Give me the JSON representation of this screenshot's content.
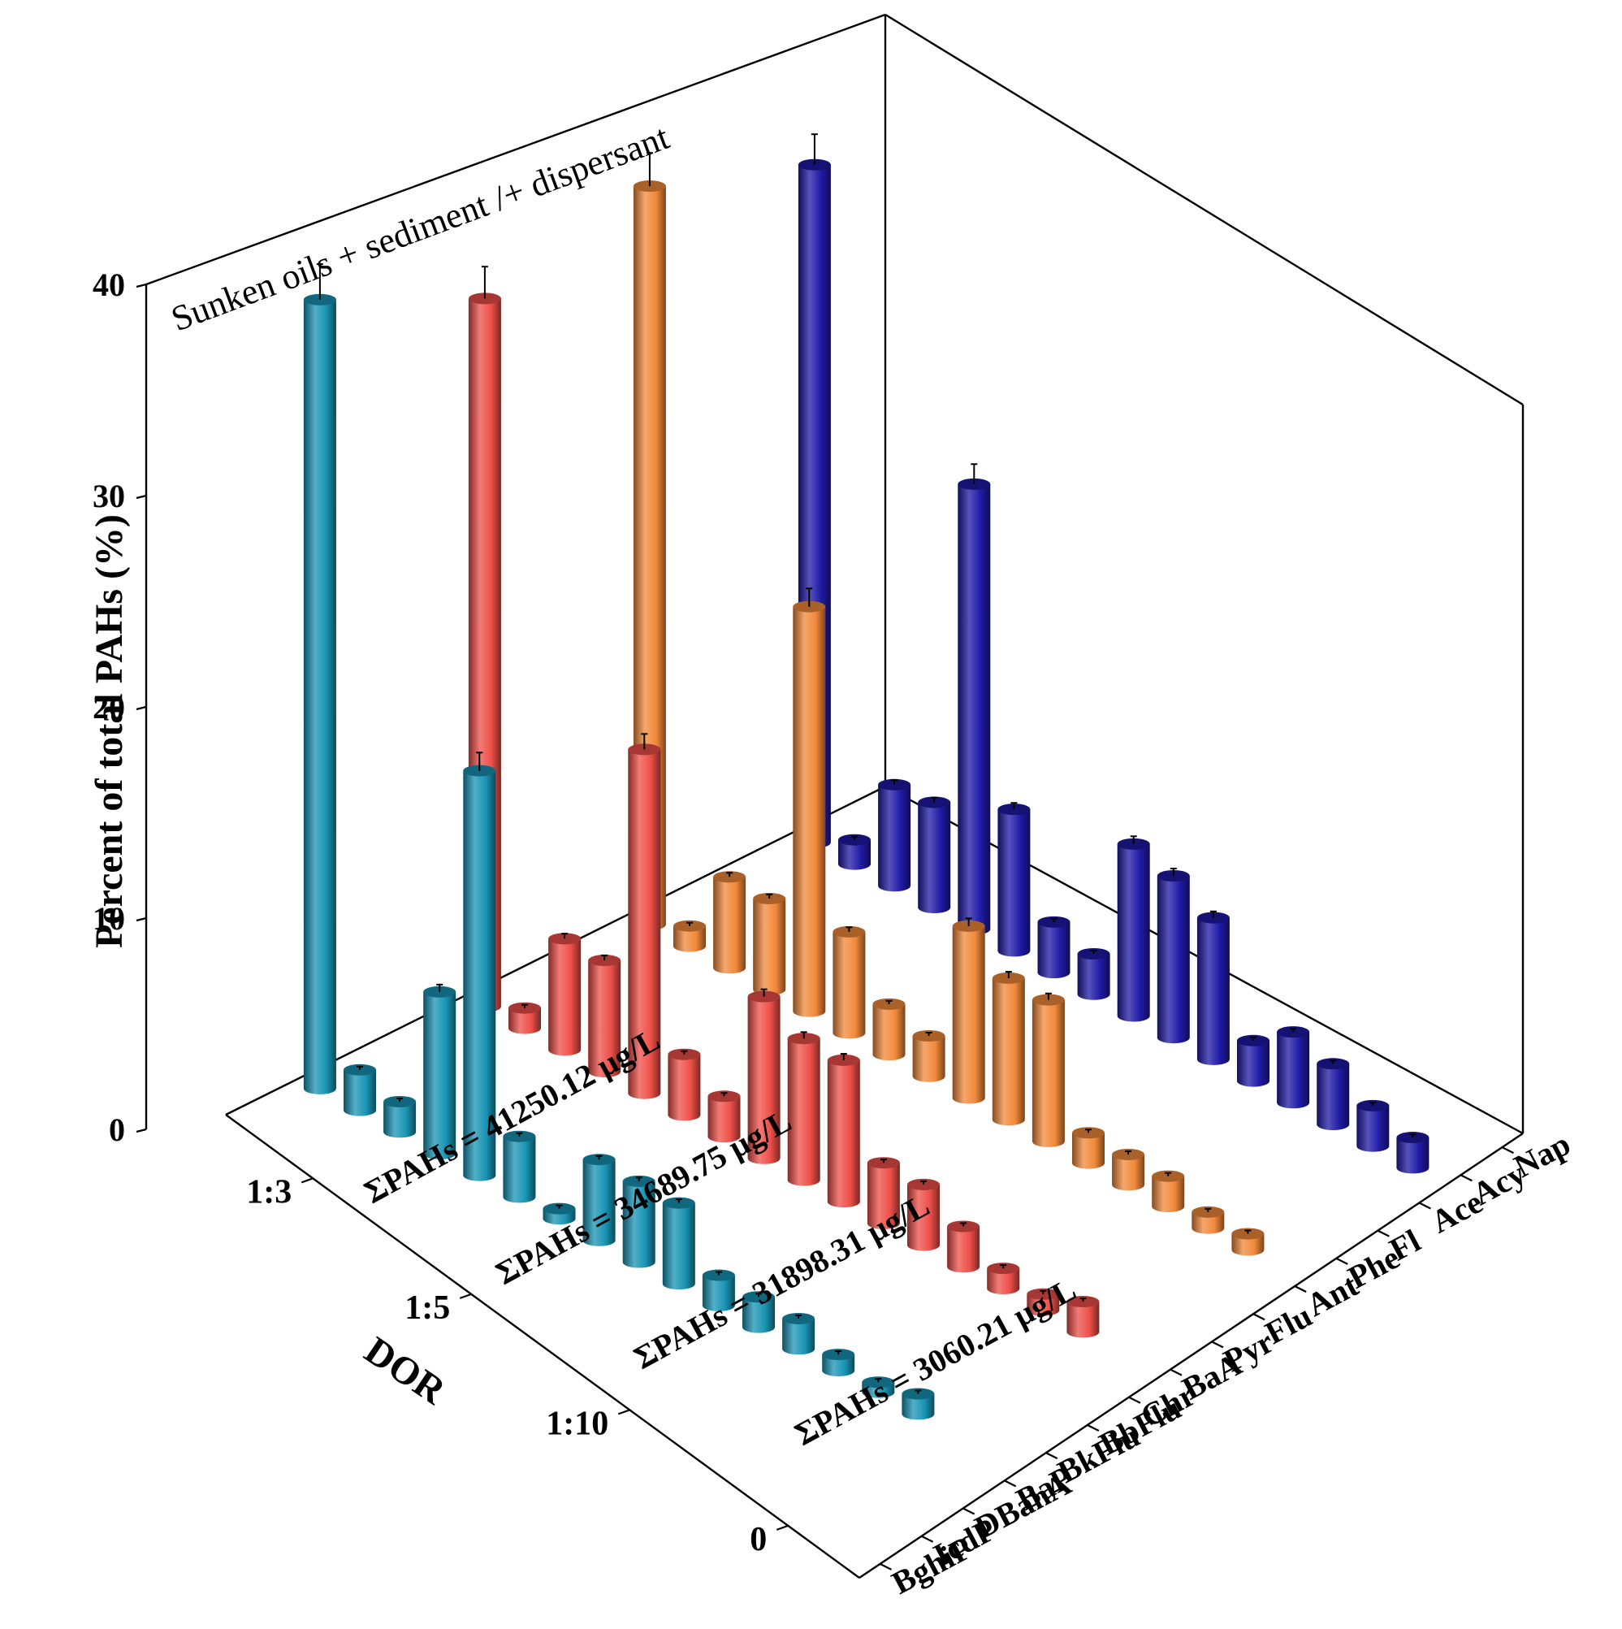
{
  "chart_data": {
    "type": "bar3d",
    "title": "Sunken oils + sediment /+ dispersant",
    "zlabel": "Percent of total PAHs (%)",
    "ylabel": "DOR",
    "zlim": [
      0,
      40
    ],
    "zticks": [
      "0",
      "10",
      "20",
      "30",
      "40"
    ],
    "categories": [
      "Nap",
      "Acy",
      "Ace",
      "Fl",
      "Phe",
      "Ant",
      "Flu",
      "Pyr",
      "BaA",
      "Chr",
      "BbFlu",
      "BkFlu",
      "BaP",
      "DBahA",
      "IcdP",
      "BghiP"
    ],
    "series": [
      {
        "name": "1:3",
        "color": "#1f1aa6",
        "total_label": "ΣPAHs = 41250.12 μg/L",
        "values": [
          33.5,
          1.2,
          5.0,
          5.2,
          22.0,
          7.0,
          2.5,
          2.0,
          8.5,
          8.0,
          7.0,
          2.0,
          3.5,
          3.0,
          2.0,
          1.5
        ]
      },
      {
        "name": "1:5",
        "color": "#f2893a",
        "total_label": "ΣPAHs = 34689.75 μg/L",
        "values": [
          36.5,
          1.0,
          4.5,
          4.5,
          20.0,
          5.0,
          2.5,
          2.0,
          8.5,
          7.0,
          7.0,
          1.5,
          1.5,
          1.5,
          0.8,
          0.8
        ]
      },
      {
        "name": "1:10",
        "color": "#ef4f48",
        "total_label": "ΣPAHs = 31898.31 μg/L",
        "values": [
          35.0,
          1.0,
          5.5,
          5.5,
          17.0,
          3.0,
          2.0,
          8.0,
          7.0,
          7.0,
          3.0,
          3.0,
          2.0,
          1.0,
          0.8,
          1.5
        ]
      },
      {
        "name": "0",
        "color": "#1894b4",
        "total_label": "ΣPAHs = 3060.21 μg/L",
        "values": [
          39.0,
          2.0,
          1.5,
          8.0,
          20.0,
          3.0,
          0.5,
          4.0,
          4.0,
          4.0,
          1.5,
          1.5,
          1.5,
          0.8,
          0.5,
          1.0
        ]
      }
    ],
    "error_bars": true,
    "grid": false
  }
}
